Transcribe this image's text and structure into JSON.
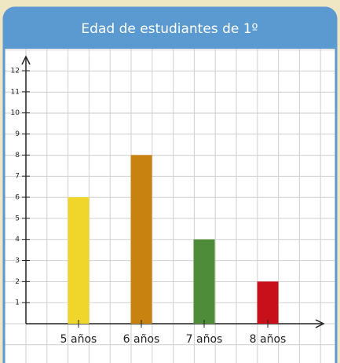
{
  "chart_data": {
    "type": "bar",
    "title": "Edad de estudiantes de 1º",
    "categories": [
      "5 años",
      "6 años",
      "7 años",
      "8 años"
    ],
    "values": [
      6,
      8,
      4,
      2
    ],
    "colors": [
      "#f0d62a",
      "#c8820f",
      "#4e8c3a",
      "#c8101a"
    ],
    "ylim": [
      0,
      12
    ],
    "yticks": [
      1,
      2,
      3,
      4,
      5,
      6,
      7,
      8,
      9,
      10,
      11,
      12
    ],
    "grid": true
  }
}
